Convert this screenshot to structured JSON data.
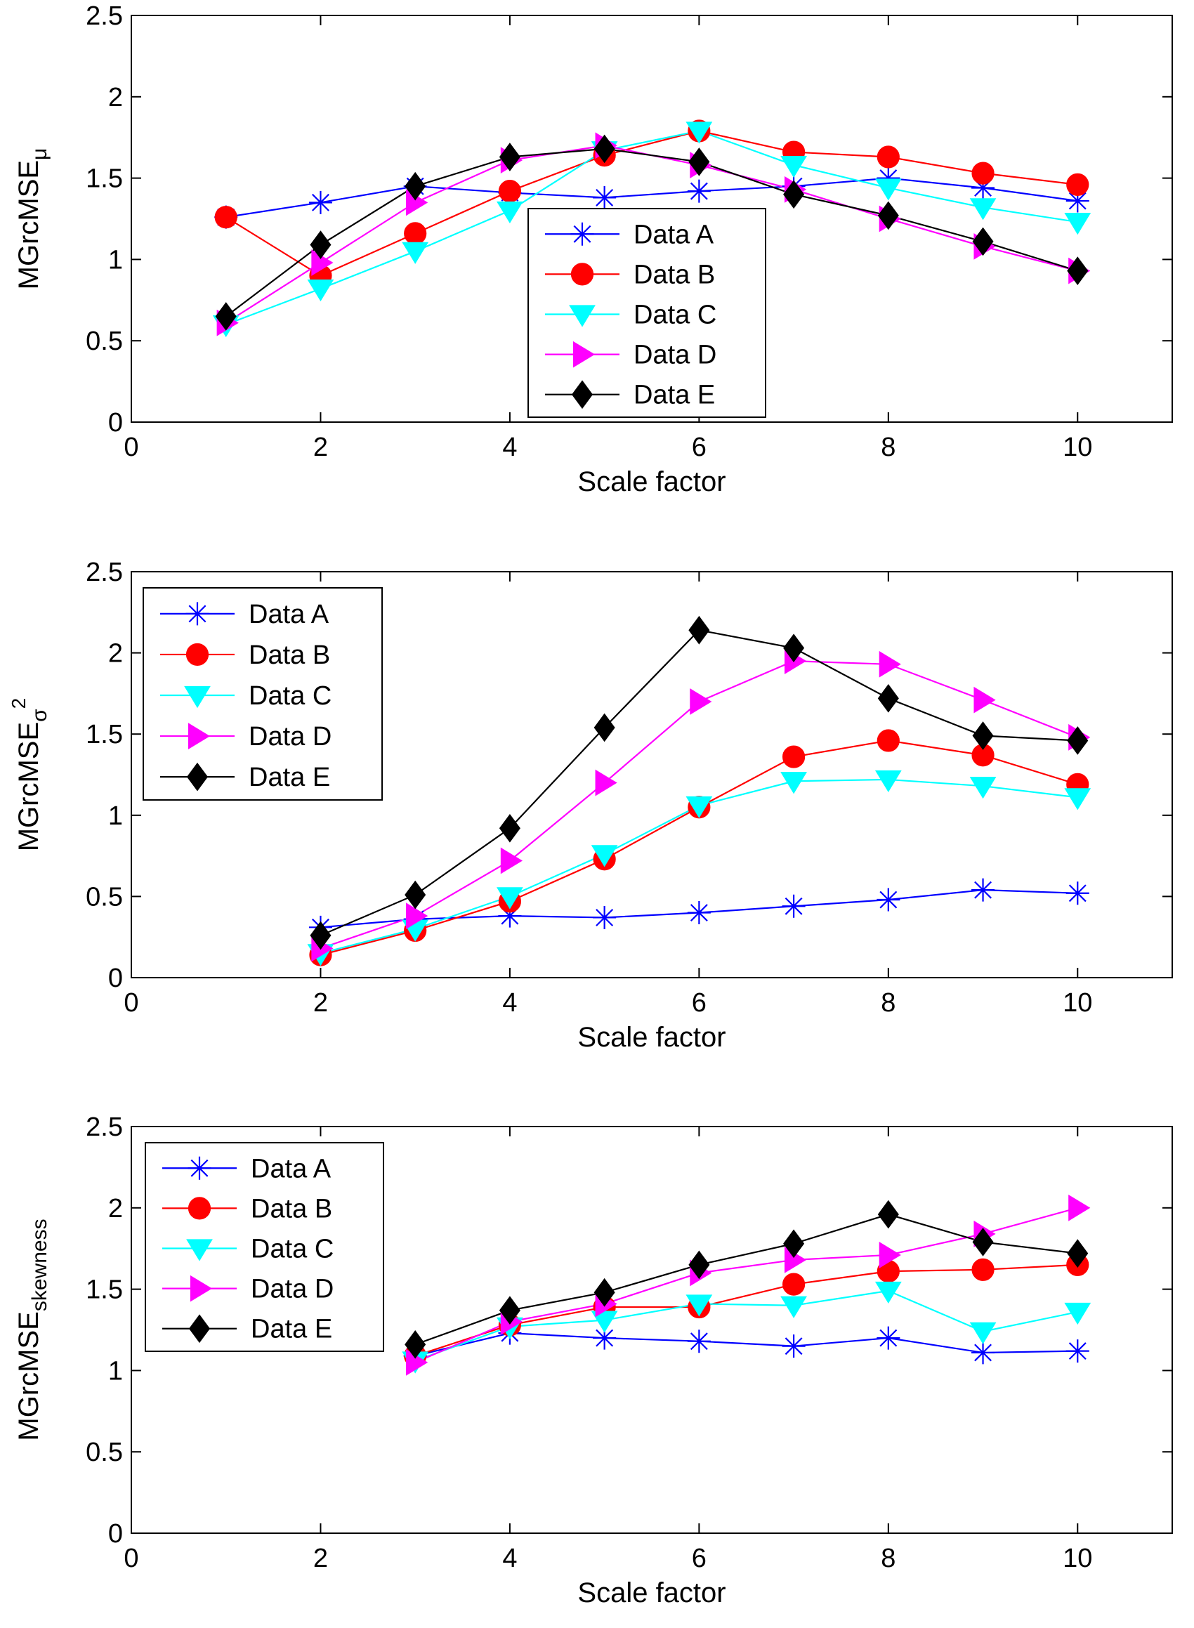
{
  "legend_entries": [
    "Data  A",
    "Data  B",
    "Data  C",
    "Data  D",
    "Data  E"
  ],
  "series_style": [
    {
      "name": "Data  A",
      "color": "#0000ff",
      "marker": "asterisk"
    },
    {
      "name": "Data  B",
      "color": "#ff0000",
      "marker": "circle"
    },
    {
      "name": "Data  C",
      "color": "#00ffff",
      "marker": "triangle-down"
    },
    {
      "name": "Data  D",
      "color": "#ff00ff",
      "marker": "triangle-right"
    },
    {
      "name": "Data  E",
      "color": "#000000",
      "marker": "diamond"
    }
  ],
  "chart_data": [
    {
      "type": "line",
      "title": "",
      "xlabel": "Scale factor",
      "ylabel": {
        "base": "MGrcMSE",
        "sub": "μ",
        "sup": ""
      },
      "xlim": [
        0,
        11
      ],
      "ylim": [
        0,
        2.5
      ],
      "xticks": [
        "0",
        "2",
        "4",
        "6",
        "8",
        "10"
      ],
      "yticks": [
        "0",
        "0.5",
        "1",
        "1.5",
        "2",
        "2.5"
      ],
      "legend_position": "center",
      "series": [
        {
          "name": "Data  A",
          "x": [
            1,
            2,
            3,
            4,
            5,
            6,
            7,
            8,
            9,
            10
          ],
          "values": [
            1.26,
            1.35,
            1.45,
            1.41,
            1.38,
            1.42,
            1.45,
            1.5,
            1.44,
            1.36
          ]
        },
        {
          "name": "Data  B",
          "x": [
            1,
            2,
            3,
            4,
            5,
            6,
            7,
            8,
            9,
            10
          ],
          "values": [
            1.26,
            0.9,
            1.16,
            1.42,
            1.64,
            1.79,
            1.66,
            1.63,
            1.53,
            1.46
          ]
        },
        {
          "name": "Data  C",
          "x": [
            1,
            2,
            3,
            4,
            5,
            6,
            7,
            8,
            9,
            10
          ],
          "values": [
            0.6,
            0.82,
            1.05,
            1.3,
            1.67,
            1.79,
            1.58,
            1.44,
            1.32,
            1.23
          ]
        },
        {
          "name": "Data  D",
          "x": [
            1,
            2,
            3,
            4,
            5,
            6,
            7,
            8,
            9,
            10
          ],
          "values": [
            0.61,
            0.98,
            1.35,
            1.61,
            1.7,
            1.58,
            1.43,
            1.25,
            1.08,
            0.93
          ]
        },
        {
          "name": "Data  E",
          "x": [
            1,
            2,
            3,
            4,
            5,
            6,
            7,
            8,
            9,
            10
          ],
          "values": [
            0.65,
            1.09,
            1.45,
            1.63,
            1.68,
            1.6,
            1.4,
            1.27,
            1.11,
            0.93
          ]
        }
      ]
    },
    {
      "type": "line",
      "title": "",
      "xlabel": "Scale factor",
      "ylabel": {
        "base": "MGrcMSE",
        "sub": "σ",
        "sup": "2"
      },
      "xlim": [
        0,
        11
      ],
      "ylim": [
        0,
        2.5
      ],
      "xticks": [
        "0",
        "2",
        "4",
        "6",
        "8",
        "10"
      ],
      "yticks": [
        "0",
        "0.5",
        "1",
        "1.5",
        "2",
        "2.5"
      ],
      "legend_position": "top-left",
      "series": [
        {
          "name": "Data  A",
          "x": [
            2,
            3,
            4,
            5,
            6,
            7,
            8,
            9,
            10
          ],
          "values": [
            0.31,
            0.36,
            0.38,
            0.37,
            0.4,
            0.44,
            0.48,
            0.54,
            0.52
          ]
        },
        {
          "name": "Data  B",
          "x": [
            2,
            3,
            4,
            5,
            6,
            7,
            8,
            9,
            10
          ],
          "values": [
            0.14,
            0.29,
            0.47,
            0.73,
            1.05,
            1.36,
            1.46,
            1.37,
            1.19
          ]
        },
        {
          "name": "Data  C",
          "x": [
            2,
            3,
            4,
            5,
            6,
            7,
            8,
            9,
            10
          ],
          "values": [
            0.15,
            0.3,
            0.5,
            0.76,
            1.06,
            1.21,
            1.22,
            1.18,
            1.11
          ]
        },
        {
          "name": "Data  D",
          "x": [
            2,
            3,
            4,
            5,
            6,
            7,
            8,
            9,
            10
          ],
          "values": [
            0.18,
            0.38,
            0.72,
            1.2,
            1.7,
            1.95,
            1.93,
            1.71,
            1.48
          ]
        },
        {
          "name": "Data  E",
          "x": [
            2,
            3,
            4,
            5,
            6,
            7,
            8,
            9,
            10
          ],
          "values": [
            0.26,
            0.51,
            0.92,
            1.54,
            2.14,
            2.03,
            1.72,
            1.49,
            1.46
          ]
        }
      ]
    },
    {
      "type": "line",
      "title": "",
      "xlabel": "Scale factor",
      "ylabel": {
        "base": "MGrcMSE",
        "sub": "skewness",
        "sup": ""
      },
      "xlim": [
        0,
        11
      ],
      "ylim": [
        0,
        2.5
      ],
      "xticks": [
        "0",
        "2",
        "4",
        "6",
        "8",
        "10"
      ],
      "yticks": [
        "0",
        "0.5",
        "1",
        "1.5",
        "2",
        "2.5"
      ],
      "legend_position": "top-left",
      "series": [
        {
          "name": "Data  A",
          "x": [
            3,
            4,
            5,
            6,
            7,
            8,
            9,
            10
          ],
          "values": [
            1.09,
            1.23,
            1.2,
            1.18,
            1.15,
            1.2,
            1.11,
            1.12
          ]
        },
        {
          "name": "Data  B",
          "x": [
            3,
            4,
            5,
            6,
            7,
            8,
            9,
            10
          ],
          "values": [
            1.09,
            1.28,
            1.39,
            1.39,
            1.53,
            1.61,
            1.62,
            1.65
          ]
        },
        {
          "name": "Data  C",
          "x": [
            3,
            4,
            5,
            6,
            7,
            8,
            9,
            10
          ],
          "values": [
            1.06,
            1.27,
            1.31,
            1.41,
            1.4,
            1.49,
            1.24,
            1.36
          ]
        },
        {
          "name": "Data  D",
          "x": [
            3,
            4,
            5,
            6,
            7,
            8,
            9,
            10
          ],
          "values": [
            1.05,
            1.3,
            1.41,
            1.6,
            1.68,
            1.71,
            1.84,
            2.0
          ]
        },
        {
          "name": "Data  E",
          "x": [
            3,
            4,
            5,
            6,
            7,
            8,
            9,
            10
          ],
          "values": [
            1.16,
            1.37,
            1.48,
            1.65,
            1.78,
            1.96,
            1.79,
            1.72
          ]
        }
      ]
    }
  ]
}
